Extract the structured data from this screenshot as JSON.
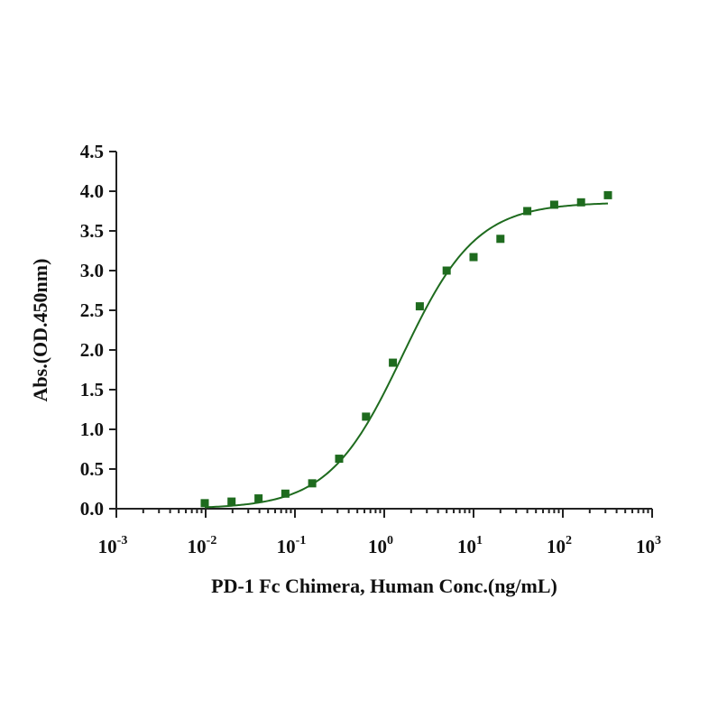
{
  "chart_data": {
    "type": "scatter",
    "xlabel": "PD-1 Fc Chimera, Human Conc.(ng/mL)",
    "ylabel": "Abs.(OD.450nm)",
    "x_scale": "log10",
    "xlim": [
      0.001,
      1000
    ],
    "ylim": [
      0,
      4.5
    ],
    "grid": false,
    "x_ticks": [
      {
        "base": "10",
        "exp": "-3"
      },
      {
        "base": "10",
        "exp": "-2"
      },
      {
        "base": "10",
        "exp": "-1"
      },
      {
        "base": "10",
        "exp": "0"
      },
      {
        "base": "10",
        "exp": "1"
      },
      {
        "base": "10",
        "exp": "2"
      },
      {
        "base": "10",
        "exp": "3"
      }
    ],
    "y_ticks": [
      "0.0",
      "0.5",
      "1.0",
      "1.5",
      "2.0",
      "2.5",
      "3.0",
      "3.5",
      "4.0",
      "4.5"
    ],
    "series": [
      {
        "color": "#1e6b1e",
        "x": [
          0.00977,
          0.0195,
          0.0391,
          0.0781,
          0.156,
          0.3125,
          0.625,
          1.25,
          2.5,
          5,
          10,
          20,
          40,
          80,
          160,
          320
        ],
        "y": [
          0.07,
          0.09,
          0.13,
          0.19,
          0.32,
          0.63,
          1.16,
          1.84,
          2.55,
          3.0,
          3.17,
          3.4,
          3.75,
          3.83,
          3.86,
          3.95
        ]
      }
    ],
    "fit": {
      "color": "#1e6b1e",
      "model": "4PL",
      "bottom": 0.0,
      "top": 3.86,
      "ec50": 1.6,
      "hill": 1.05
    }
  }
}
